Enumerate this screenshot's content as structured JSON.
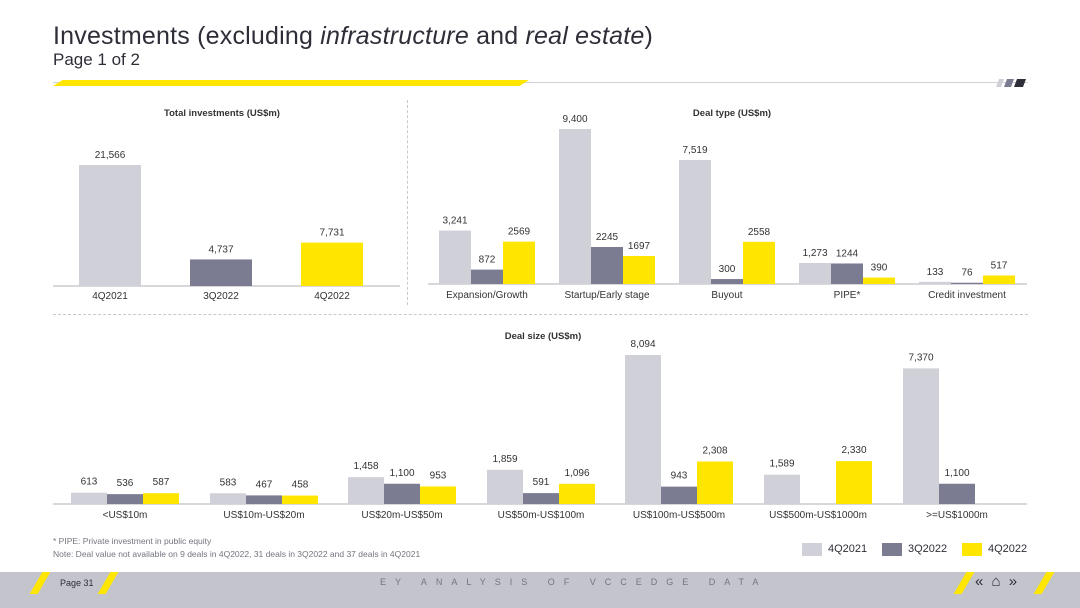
{
  "header": {
    "title_prefix": "Investments (excluding ",
    "title_em1": "infrastructure",
    "title_mid": " and ",
    "title_em2": "real estate",
    "title_suffix": ")",
    "subtitle": "Page 1 of 2"
  },
  "colors": {
    "s1": "#d0d0d8",
    "s2": "#7b7b92",
    "s3": "#ffe600",
    "axis": "#b0b0b8",
    "text": "#333333"
  },
  "chart_data": [
    {
      "type": "bar",
      "title": "Total investments (US$m)",
      "categories": [
        "4Q2021",
        "3Q2022",
        "4Q2022"
      ],
      "values": [
        21566,
        4737,
        7731
      ],
      "labels": [
        "21,566",
        "4,737",
        "7,731"
      ]
    },
    {
      "type": "bar",
      "title": "Deal type (US$m)",
      "categories": [
        "Expansion/Growth",
        "Startup/Early stage",
        "Buyout",
        "PIPE*",
        "Credit investment"
      ],
      "series": [
        {
          "name": "4Q2021",
          "values": [
            3241,
            9400,
            7519,
            1273,
            133
          ],
          "labels": [
            "3,241",
            "9,400",
            "7,519",
            "1,273",
            "133"
          ]
        },
        {
          "name": "3Q2022",
          "values": [
            872,
            2245,
            300,
            1244,
            76
          ],
          "labels": [
            "872",
            "2245",
            "300",
            "1244",
            "76"
          ]
        },
        {
          "name": "4Q2022",
          "values": [
            2569,
            1697,
            2558,
            390,
            517
          ],
          "labels": [
            "2569",
            "1697",
            "2558",
            "390",
            "517"
          ]
        }
      ]
    },
    {
      "type": "bar",
      "title": "Deal size (US$m)",
      "categories": [
        "<US$10m",
        "US$10m-US$20m",
        "US$20m-US$50m",
        "US$50m-US$100m",
        "US$100m-US$500m",
        "US$500m-US$1000m",
        ">=US$1000m"
      ],
      "series": [
        {
          "name": "4Q2021",
          "values": [
            613,
            583,
            1458,
            1859,
            8094,
            1589,
            7370
          ],
          "labels": [
            "613",
            "583",
            "1,458",
            "1,859",
            "8,094",
            "1,589",
            "7,370"
          ]
        },
        {
          "name": "3Q2022",
          "values": [
            536,
            467,
            1100,
            591,
            943,
            0,
            1100
          ],
          "labels": [
            "536",
            "467",
            "1,100",
            "591",
            "943",
            "",
            "1,100"
          ]
        },
        {
          "name": "4Q2022",
          "values": [
            587,
            458,
            953,
            1096,
            2308,
            2330,
            0
          ],
          "labels": [
            "587",
            "458",
            "953",
            "1,096",
            "2,308",
            "2,330",
            ""
          ]
        }
      ]
    }
  ],
  "notes": {
    "line1": "* PIPE: Private investment in public equity",
    "line2": "Note: Deal value not available on 9 deals in 4Q2022, 31 deals in 3Q2022 and 37 deals in 4Q2021"
  },
  "legend": [
    "4Q2021",
    "3Q2022",
    "4Q2022"
  ],
  "footer": {
    "page": "Page 31",
    "tagline": "EY ANALYSIS OF VCCEDGE DATA",
    "nav": "« ⌂ »"
  }
}
